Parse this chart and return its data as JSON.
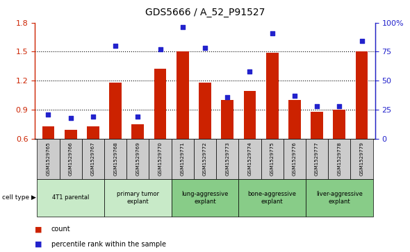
{
  "title": "GDS5666 / A_52_P91527",
  "samples": [
    "GSM1529765",
    "GSM1529766",
    "GSM1529767",
    "GSM1529768",
    "GSM1529769",
    "GSM1529770",
    "GSM1529771",
    "GSM1529772",
    "GSM1529773",
    "GSM1529774",
    "GSM1529775",
    "GSM1529776",
    "GSM1529777",
    "GSM1529778",
    "GSM1529779"
  ],
  "counts": [
    0.73,
    0.69,
    0.73,
    1.18,
    0.75,
    1.32,
    1.5,
    1.18,
    1.0,
    1.09,
    1.49,
    1.0,
    0.88,
    0.9,
    1.5
  ],
  "percentiles": [
    21,
    18,
    19,
    80,
    19,
    77,
    96,
    78,
    36,
    58,
    91,
    37,
    28,
    28,
    84
  ],
  "cell_types": [
    {
      "label": "4T1 parental",
      "start": 0,
      "end": 3
    },
    {
      "label": "primary tumor\nexplant",
      "start": 3,
      "end": 6
    },
    {
      "label": "lung-aggressive\nexplant",
      "start": 6,
      "end": 9
    },
    {
      "label": "bone-aggressive\nexplant",
      "start": 9,
      "end": 12
    },
    {
      "label": "liver-aggressive\nexplant",
      "start": 12,
      "end": 15
    }
  ],
  "ylim_left": [
    0.6,
    1.8
  ],
  "ylim_right": [
    0,
    100
  ],
  "yticks_left": [
    0.6,
    0.9,
    1.2,
    1.5,
    1.8
  ],
  "yticks_right": [
    0,
    25,
    50,
    75,
    100
  ],
  "bar_color": "#cc2200",
  "dot_color": "#2222cc",
  "light_green": "#c8eac8",
  "mid_green": "#88cc88",
  "sample_bg": "#cccccc",
  "right_yaxis_color": "#2222cc",
  "left_yaxis_color": "#cc2200",
  "legend_count_label": "count",
  "legend_percentile_label": "percentile rank within the sample",
  "cell_type_label": "cell type"
}
